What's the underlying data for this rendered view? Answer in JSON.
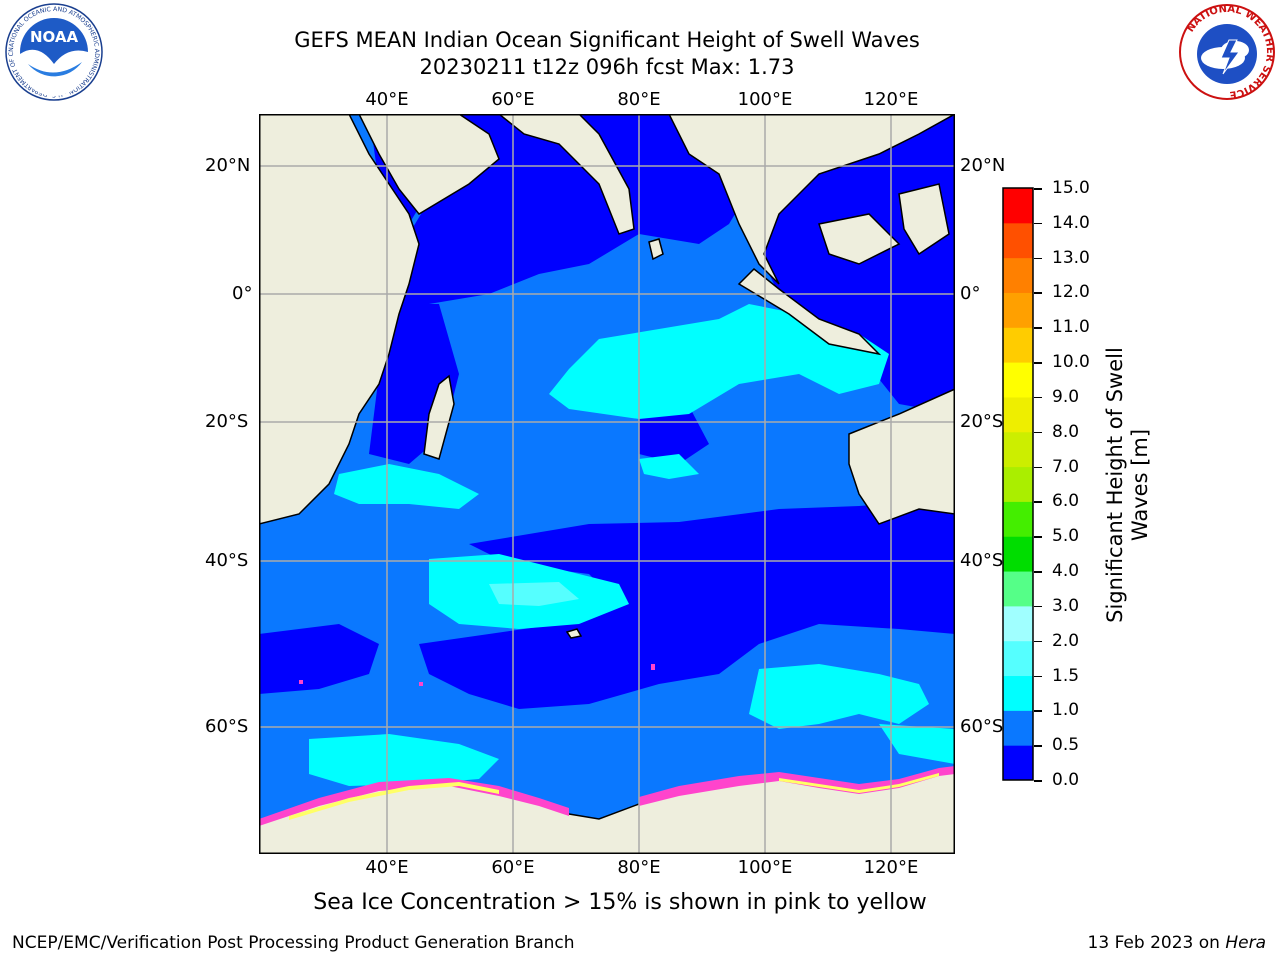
{
  "header": {
    "title_line1": "GEFS MEAN Indian Ocean Significant Height of Swell Waves",
    "title_line2": "20230211 t12z 096h fcst   Max: 1.73"
  },
  "map": {
    "lon_labels": [
      "40°E",
      "60°E",
      "80°E",
      "100°E",
      "120°E"
    ],
    "lat_labels": [
      "20°N",
      "0°",
      "20°S",
      "40°S",
      "60°S"
    ],
    "extent": {
      "lon": [
        20,
        130
      ],
      "lat": [
        -74,
        28
      ]
    },
    "gridlines": true,
    "max_value": 1.73
  },
  "colorbar": {
    "label": "Significant Height of Swell Waves [m]",
    "label_line1": "Significant Height of Swell",
    "label_line2": "Waves [m]",
    "ticks": [
      "15.0",
      "14.0",
      "13.0",
      "12.0",
      "11.0",
      "10.0",
      "9.0",
      "8.0",
      "7.0",
      "6.0",
      "5.0",
      "4.0",
      "3.0",
      "2.0",
      "1.5",
      "1.0",
      "0.5",
      "0.0"
    ],
    "bins": [
      {
        "from": 0.0,
        "to": 0.5,
        "color": "#0000ff"
      },
      {
        "from": 0.5,
        "to": 1.0,
        "color": "#0a78ff"
      },
      {
        "from": 1.0,
        "to": 1.5,
        "color": "#00ffff"
      },
      {
        "from": 1.5,
        "to": 2.0,
        "color": "#55ffff"
      },
      {
        "from": 2.0,
        "to": 3.0,
        "color": "#a0ffff"
      },
      {
        "from": 3.0,
        "to": 4.0,
        "color": "#55ff88"
      },
      {
        "from": 4.0,
        "to": 5.0,
        "color": "#00dd00"
      },
      {
        "from": 5.0,
        "to": 6.0,
        "color": "#44ee00"
      },
      {
        "from": 6.0,
        "to": 7.0,
        "color": "#aaee00"
      },
      {
        "from": 7.0,
        "to": 8.0,
        "color": "#ccee00"
      },
      {
        "from": 8.0,
        "to": 9.0,
        "color": "#eeee00"
      },
      {
        "from": 9.0,
        "to": 10.0,
        "color": "#ffff00"
      },
      {
        "from": 10.0,
        "to": 11.0,
        "color": "#ffcc00"
      },
      {
        "from": 11.0,
        "to": 12.0,
        "color": "#ffa000"
      },
      {
        "from": 12.0,
        "to": 13.0,
        "color": "#ff8000"
      },
      {
        "from": 13.0,
        "to": 14.0,
        "color": "#ff5000"
      },
      {
        "from": 14.0,
        "to": 15.0,
        "color": "#ff0000"
      }
    ]
  },
  "colors": {
    "land": "#eeeedd",
    "ocean_low": "#0000ff",
    "ocean_mid": "#0a78ff",
    "ocean_high": "#00ffff",
    "sea_ice_low": "#ff44cc",
    "sea_ice_high": "#ffff66"
  },
  "notes": {
    "sea_ice": "Sea Ice Concentration > 15% is shown in pink to yellow"
  },
  "footer": {
    "branch": "NCEP/EMC/Verification Post Processing Product Generation Branch",
    "date": "13 Feb 2023 on",
    "host": "Hera"
  },
  "logos": {
    "noaa_text": "NOAA",
    "noaa_ring": "NATIONAL OCEANIC AND ATMOSPHERIC ADMINISTRATION · U.S. DEPARTMENT OF COMMERCE",
    "nws_ring": "NATIONAL WEATHER SERVICE"
  }
}
